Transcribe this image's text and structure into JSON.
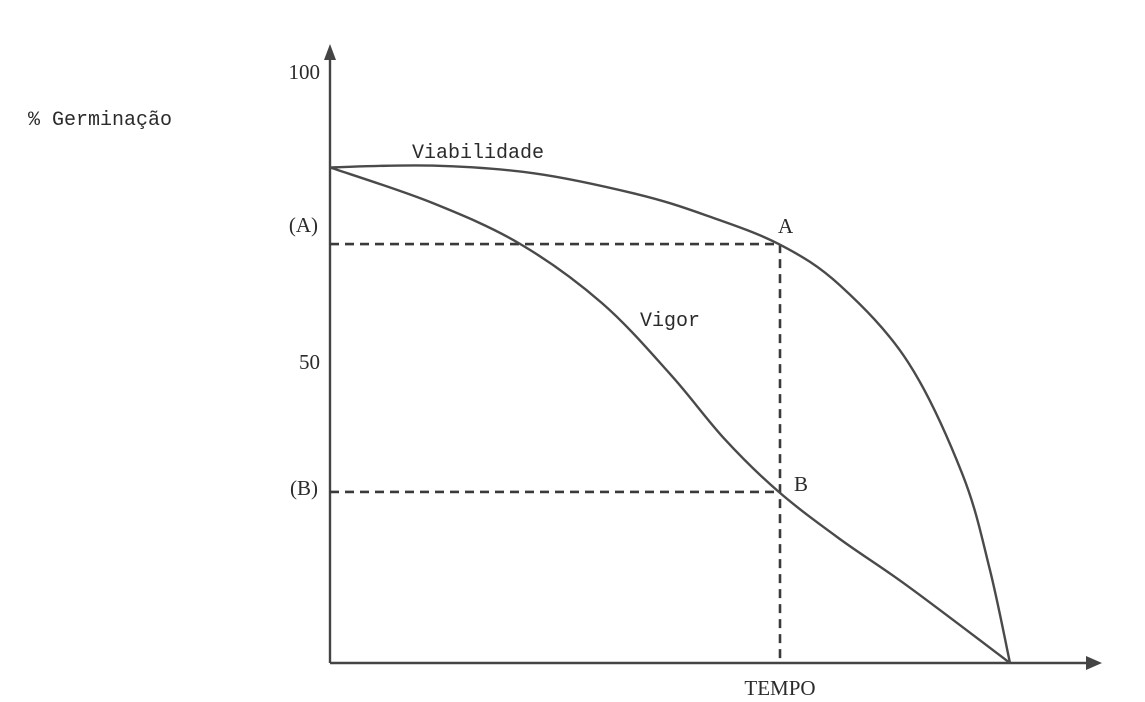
{
  "chart_data": {
    "type": "line",
    "ylabel": "% Germinação",
    "xlabel": "TEMPO",
    "ylim": [
      0,
      100
    ],
    "yticks": [
      {
        "label": "100",
        "value": 100
      },
      {
        "label": "50",
        "value": 50
      }
    ],
    "ref_levels": [
      {
        "label": "(A)",
        "value": 71
      },
      {
        "label": "(B)",
        "value": 29
      }
    ],
    "series": [
      {
        "name": "Viabilidade",
        "x": [
          0,
          15,
          30,
          45,
          55,
          66,
          75,
          85,
          93,
          97,
          100
        ],
        "y": [
          84,
          84.3,
          83,
          79.5,
          76,
          71,
          64,
          51,
          32,
          16,
          0
        ]
      },
      {
        "name": "Vigor",
        "x": [
          0,
          15,
          28,
          40,
          50,
          58,
          66,
          75,
          85,
          100
        ],
        "y": [
          84,
          78,
          71,
          61,
          49,
          38,
          29,
          21,
          13,
          0
        ]
      }
    ],
    "points": [
      {
        "label": "A",
        "series": "Viabilidade",
        "y": 71
      },
      {
        "label": "B",
        "series": "Vigor",
        "y": 29
      }
    ]
  }
}
